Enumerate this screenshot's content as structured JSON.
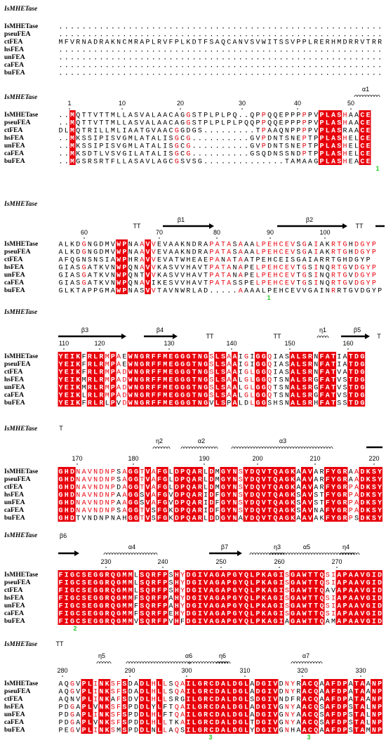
{
  "blocks": [
    {
      "header": "IsMHETase",
      "secondary": [],
      "ruler": [],
      "rows": [
        {
          "name": "IsMHETase",
          "seq": "........................................................"
        },
        {
          "name": "pseuFEA",
          "seq": "........................................................"
        },
        {
          "name": "ctFEA",
          "seq": "MFVRNADRAKNCMRAPLRVFPLKDTFSAQCANVSVWITSSVPPLRERHMDRRVTRR"
        },
        {
          "name": "hsFEA",
          "seq": "........................................................"
        },
        {
          "name": "unFEA",
          "seq": "........................................................"
        },
        {
          "name": "caFEA",
          "seq": "........................................................"
        },
        {
          "name": "buFEA",
          "seq": "........................................................"
        }
      ],
      "marks": []
    },
    {
      "header": "IsMHETase",
      "secondary": [
        "α1"
      ],
      "ruler": [
        1,
        10,
        20,
        30,
        40,
        50
      ],
      "rows": [
        {
          "name": "IsMHETase",
          "seq": "..MQTTVTTMLLASVALAACAGGSTPLPLPQ..QPPQQEPPPPPVPLASHAACE"
        },
        {
          "name": "pseuFEA",
          "seq": "..MQTTVTTMLLASVALAACAGGSTPLPLPLPQQPPQQEPPPPPVPLASHAACE"
        },
        {
          "name": "ctFEA",
          "seq": "DLMQTRILLMLIAATGVAACGGDGS.........TPAAQNPPPPVPLASRAACE"
        },
        {
          "name": "hsFEA",
          "seq": "..MKSSIPISVGMLATALISGCG..........GVPDNTSNEPTPPLASHELCE"
        },
        {
          "name": "unFEA",
          "seq": "..MKSSIPISVGMLATALISGCG..........GVPDNTSNEPTPPLASHELCE"
        },
        {
          "name": "caFEA",
          "seq": "..MKSDTLVSVGILATALISGCG..........GSQDNSSNDPTPPLASHELCE"
        },
        {
          "name": "buFEA",
          "seq": "..MGSRSRTFLLASAVLAGCGSVSG..............TAMAAGPLASHEACE"
        }
      ],
      "marks": [
        "1"
      ]
    },
    {
      "header": "IsMHETase",
      "secondary": [
        "TT",
        "β1",
        "β2",
        "TT"
      ],
      "ruler": [
        60,
        70,
        80,
        90,
        100
      ],
      "rows": [
        {
          "name": "IsMHETase",
          "seq": "ALKDGNGDMVWPNAAVVEVAAKNDRAPATASAAALPEHCEVSGAIAKRTGHDGYP"
        },
        {
          "name": "pseuFEA",
          "seq": "ALKDGNGDMVWPNAAVVEVAAKNDRAPATASAAALPEHCEVSGAIAKRTGHDGYP"
        },
        {
          "name": "ctFEA",
          "seq": "AFQGNSNSIAWPHRAVVEVATWHEAEPANATAATPEHCEISGAIARRTGHDGYP"
        },
        {
          "name": "hsFEA",
          "seq": "GIASGATKVNWPQNAVVKASVVHAVTPATANAPELPEHCEVTGSINQRTGVDGYP"
        },
        {
          "name": "unFEA",
          "seq": "GIASGATKVNWPQNTVVKASVVHAVTPATANAPELPEHCEVTGSINQRTGVDGYP"
        },
        {
          "name": "caFEA",
          "seq": "GIASGATKVNWPQNAVIKESVVHAVTPATASSPELPEHCEVTGSINQRTGVDGYP"
        },
        {
          "name": "buFEA",
          "seq": "GLKTAPPGMAWPNASVVTAVNWRLAD.....AAAALPEHCEVVGAINRRTGVDGYP"
        }
      ],
      "marks": [
        "1"
      ]
    },
    {
      "header": "IsMHETase",
      "secondary": [
        "β3",
        "β4",
        "TT",
        "TT",
        "η1",
        "β5",
        "T"
      ],
      "ruler": [
        110,
        120,
        130,
        140,
        150,
        160
      ],
      "rows": [
        {
          "name": "IsMHETase",
          "seq": "YEIKFRLRMPAEWNGRFFMEGGGTNGSLSAAIGIGGQIASALSRNFATIATDG"
        },
        {
          "name": "pseuFEA",
          "seq": "YEIKFRLRMPAEWNGRFFMEGGGTNGSLSAAIGIGGQIASALSRNFATIATDG"
        },
        {
          "name": "ctFEA",
          "seq": "YEIKFRLRMPADWNGRFFMEGGGTNGSLSAAIGLGGQIASALSRNFATVATDG"
        },
        {
          "name": "hsFEA",
          "seq": "YEIKMRLRMPADWNGRFFMEGGGTNGSLSAALGLGGQTSNALSRGFATVSTDG"
        },
        {
          "name": "unFEA",
          "seq": "YEIKMRLRMPADWNGRFFMEGGGTNGSLSAALGLGGQTSNALSRGFATVSTDG"
        },
        {
          "name": "caFEA",
          "seq": "YEIKLRLRMPADWNGRFFMEGGGTNGSLSAALGLGGQTSNALSRGFATVSTDG"
        },
        {
          "name": "buFEA",
          "seq": "YEIKFRLRLPVDWNGRFFMEGGGTNGVLSPALDLGGSHSNALSRHFATSSTDG"
        }
      ],
      "marks": []
    },
    {
      "header": "IsMHETase",
      "secondary": [
        "T",
        "η2",
        "α2",
        "α3"
      ],
      "ruler": [
        170,
        180,
        190,
        200,
        210,
        220
      ],
      "rows": [
        {
          "name": "IsMHETase",
          "seq": "GHDNAVNDNPSAGGTVAFGLDPQARLDMGYNSYDQVTQAGKAAVARFYGRAADKSY"
        },
        {
          "name": "pseuFEA",
          "seq": "GHDNAVNDNPSAGGTVAFGLDPQARLDMGYNSYDQVTQAGKAAVARFYGRAADKSY"
        },
        {
          "name": "ctFEA",
          "seq": "GHDNAVNDNPDAGGTVAFGLDPQARLDMGYNSYDQVTQAGKAAVARFYGRPADKSY"
        },
        {
          "name": "hsFEA",
          "seq": "GHDNAVNDNPAAGGSVAFGVDPQARIDFGYNSYDQVTQAGKSAVSTFYGRPADKSY"
        },
        {
          "name": "unFEA",
          "seq": "GHDNAVNDNPAAGGSVAFGVDPQARIDFGYNSYDQVTQAGKSAVSTFYGRPADKSY"
        },
        {
          "name": "caFEA",
          "seq": "GHDNAVNDNPSAGGTVSFGKDPQARIDFGYNSYDQVTQAGKSAVNAFYGRPADKSY"
        },
        {
          "name": "buFEA",
          "seq": "GHDTVNDNPNAHGGTVSFGKDPQARLDDGYNAYDQVTQAGKAAVAKFYGRPSDKSY"
        }
      ],
      "marks": []
    },
    {
      "header": "IsMHETase",
      "secondary": [
        "β6",
        "α4",
        "β7",
        "η3",
        "α5",
        "η4"
      ],
      "ruler": [
        230,
        240,
        250,
        260,
        270
      ],
      "rows": [
        {
          "name": "IsMHETase",
          "seq": "FIGCSEGGRQGMMLSQRFPSHYDGIVAGAPGYQLPKAGISGAWTTQSIAPAAVGID"
        },
        {
          "name": "pseuFEA",
          "seq": "FIGCSEGGRQGMMLSQRFPSHYDGIVAGAPGYQLPKAGISGAWTTQSIAPAAVGID"
        },
        {
          "name": "ctFEA",
          "seq": "FIGCSEGGRQGMMLSQRFPSHYDGIVAGAPGYQLPKAGISGAWTTQAVAPAAVGID"
        },
        {
          "name": "hsFEA",
          "seq": "FIGCSEGGRQGMMFSQRFPAHYDGIVAGAPGYQLPKAGISGAWTTQSIAPAAVGID"
        },
        {
          "name": "unFEA",
          "seq": "FIGCSEGGRQGMMFSQRFPAHYDGIVAGAPGYQLPKAGISGAWTTQSIAPAAVGID"
        },
        {
          "name": "caFEA",
          "seq": "FIGCSEGGRQGMMFSQRFPEHYDGIVAGAPGYQLPKAGISGAWTTQSIAPAAVGID"
        },
        {
          "name": "buFEA",
          "seq": "FIGCSEGGRQGMMVSQRFPVHFDGIVAGAPGYQLPKAGIAGAWTTQAMAPAAVGID"
        }
      ],
      "marks": [
        "2"
      ]
    },
    {
      "header": "IsMHETase",
      "secondary": [
        "TT",
        "η5",
        "α6",
        "*",
        "η6",
        "α7"
      ],
      "ruler": [
        280,
        290,
        300,
        310,
        320,
        330
      ],
      "rows": [
        {
          "name": "IsMHETase",
          "seq": "AQGVPLINKSFSDADLHLLSQAILGRCDALDGLADGIVDNYRACQAAFDPATAANP"
        },
        {
          "name": "pseuFEA",
          "seq": "AQGVPLINKSFSDADLHLLSQAILGRCDALDGLADGIVDNYRACQAAFDPATAANP"
        },
        {
          "name": "ctFEA",
          "seq": "AQNVPLINKAFSDVDLHLLSRGILGRCDALDGLSDGIVNDFRACQAAFDPATAANP"
        },
        {
          "name": "hsFEA",
          "seq": "PDGAPLVNKSFSPDDLYLFTQAILGRCDALDGLADGIVGNYAACQSAFDPSTALNP"
        },
        {
          "name": "unFEA",
          "seq": "PDGAPLINKSFSPDDLHLFTQAILGRCDALDGLADGIVGNYAACQSAFDPSTALNP"
        },
        {
          "name": "caFEA",
          "seq": "PDGAPLVNKSFSPDDLHLLTKAILGRCDALDGLTDGIVGNYAACQSAFDPSTALNP"
        },
        {
          "name": "buFEA",
          "seq": "PEGVPLINKSMSPDDLNLLAQSILGRCDALDGLYDGIVGNHAACQAAFDPSTAMNP"
        }
      ],
      "marks": [
        "3",
        "3"
      ]
    }
  ]
}
